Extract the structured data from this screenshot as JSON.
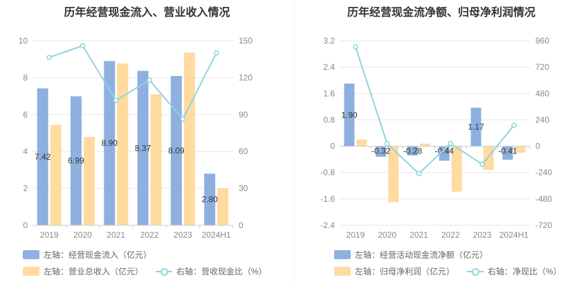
{
  "colors": {
    "bar1": "#8eb0df",
    "bar2": "#ffdba0",
    "line": "#8fd4dc",
    "grid": "#e6e6f0"
  },
  "chart_data": [
    {
      "type": "bar",
      "title": "历年经营现金流入、营业收入情况",
      "categories": [
        "2019",
        "2020",
        "2021",
        "2022",
        "2023",
        "2024H1"
      ],
      "left_axis": {
        "min": 0,
        "max": 10,
        "ticks": [
          "0",
          "2",
          "4",
          "6",
          "8",
          "10"
        ]
      },
      "right_axis": {
        "min": 0,
        "max": 150,
        "ticks": [
          "0",
          "30",
          "60",
          "90",
          "120",
          "150"
        ]
      },
      "series": [
        {
          "name": "左轴：经营现金流入（亿元）",
          "kind": "bar",
          "axis": "left",
          "color": "#8eb0df",
          "values": [
            7.42,
            6.99,
            8.9,
            8.37,
            8.09,
            2.8
          ],
          "labels": [
            "7.42",
            "6.99",
            "8.90",
            "8.37",
            "8.09",
            "2.80"
          ]
        },
        {
          "name": "左轴：营业总收入（亿元）",
          "kind": "bar",
          "axis": "left",
          "color": "#ffdba0",
          "values": [
            5.44,
            4.79,
            8.77,
            7.1,
            9.36,
            2.0
          ]
        },
        {
          "name": "右轴：营收现金比（%）",
          "kind": "line",
          "axis": "right",
          "color": "#8fd4dc",
          "values": [
            136.5,
            146,
            101.5,
            118,
            86.4,
            140
          ]
        }
      ]
    },
    {
      "type": "bar",
      "title": "历年经营现金流净额、归母净利润情况",
      "categories": [
        "2019",
        "2020",
        "2021",
        "2022",
        "2023",
        "2024H1"
      ],
      "left_axis": {
        "min": -2.4,
        "max": 3.2,
        "ticks": [
          "-2.4",
          "-1.6",
          "-0.8",
          "0",
          "0.8",
          "1.6",
          "2.4",
          "3.2"
        ]
      },
      "right_axis": {
        "min": -720,
        "max": 960,
        "ticks": [
          "-720",
          "-480",
          "-240",
          "0",
          "240",
          "480",
          "720",
          "960"
        ]
      },
      "series": [
        {
          "name": "左轴：经营活动现金流净额（亿元）",
          "kind": "bar",
          "axis": "left",
          "color": "#8eb0df",
          "values": [
            1.9,
            -0.32,
            -0.28,
            -0.44,
            1.17,
            -0.41
          ],
          "labels": [
            "1.90",
            "-0.32",
            "-0.28",
            "-0.44",
            "1.17",
            "-0.41"
          ]
        },
        {
          "name": "左轴：归母净利润（亿元）",
          "kind": "bar",
          "axis": "left",
          "color": "#ffdba0",
          "values": [
            0.2,
            -1.7,
            0.08,
            -1.38,
            -0.72,
            -0.2
          ]
        },
        {
          "name": "右轴：净现比（%）",
          "kind": "line",
          "axis": "right",
          "color": "#8fd4dc",
          "values": [
            905,
            22,
            -250,
            25,
            -165,
            190
          ]
        }
      ]
    }
  ]
}
